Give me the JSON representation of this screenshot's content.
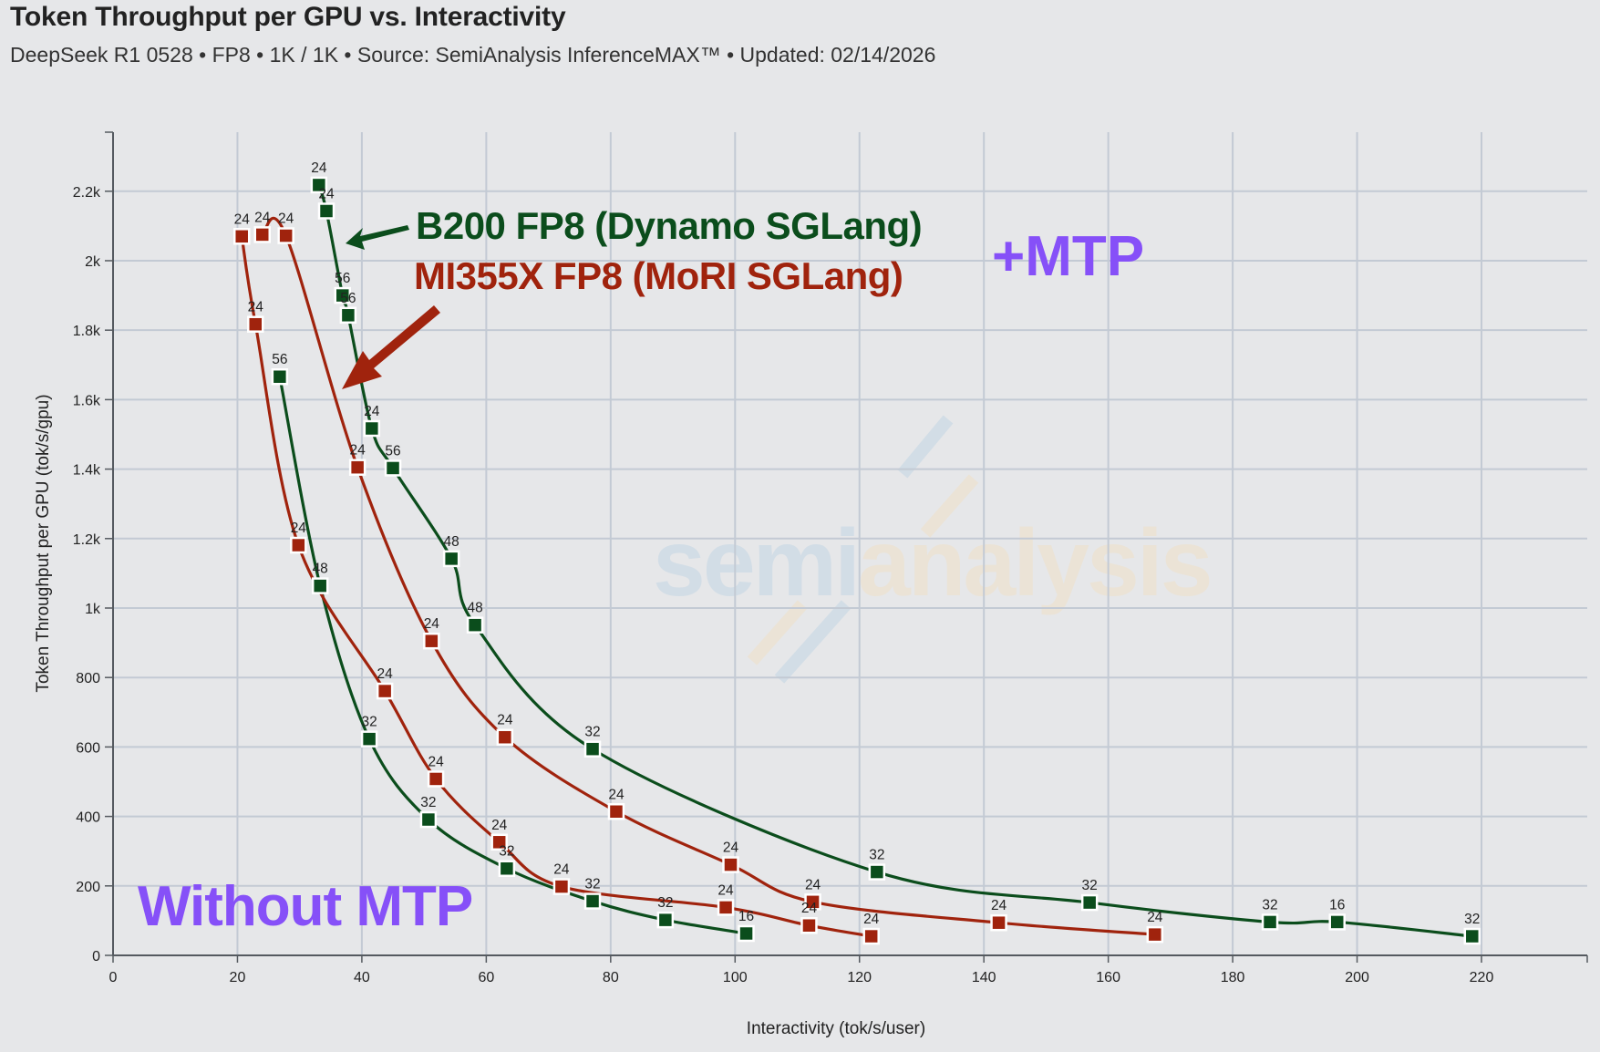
{
  "header": {
    "title": "Token Throughput per GPU vs. Interactivity",
    "subtitle": "DeepSeek R1 0528 • FP8 • 1K / 1K • Source: SemiAnalysis InferenceMAX™ • Updated: 02/14/2026"
  },
  "watermark": {
    "part1": "semi",
    "part2": "analysis",
    "color1": "#d2dde6",
    "color2": "#ebe3d6"
  },
  "chart_data": {
    "type": "line",
    "title": "Token Throughput per GPU vs. Interactivity",
    "xlabel": "Interactivity (tok/s/user)",
    "ylabel": "Token Throughput per GPU (tok/s/gpu)",
    "xlim": [
      0,
      237
    ],
    "ylim": [
      0,
      2370
    ],
    "x_ticks": [
      0,
      20,
      40,
      60,
      80,
      100,
      120,
      140,
      160,
      180,
      200,
      220
    ],
    "x_tick_labels": [
      "0",
      "20",
      "40",
      "60",
      "80",
      "100",
      "120",
      "140",
      "160",
      "180",
      "200",
      "220"
    ],
    "y_ticks": [
      0,
      200,
      400,
      600,
      800,
      1000,
      1200,
      1400,
      1600,
      1800,
      2000,
      2200
    ],
    "y_tick_labels": [
      "0",
      "200",
      "400",
      "600",
      "800",
      "1k",
      "1.2k",
      "1.4k",
      "1.6k",
      "1.8k",
      "2k",
      "2.2k"
    ],
    "grid": true,
    "series": [
      {
        "name": "B200 FP8 (Dynamo SGLang) +MTP",
        "color": "#0b4d1c",
        "x": [
          33.1,
          34.3,
          36.9,
          37.8,
          41.6,
          45.0,
          54.4,
          58.2,
          77.1,
          122.8,
          157.0,
          186.0,
          196.8,
          218.5
        ],
        "y": [
          2218,
          2143,
          1900,
          1843,
          1517,
          1403,
          1142,
          951,
          594,
          240,
          152,
          96,
          96,
          55
        ],
        "labels": [
          "24",
          "24",
          "56",
          "56",
          "24",
          "56",
          "48",
          "48",
          "32",
          "32",
          "32",
          "32",
          "16",
          "32"
        ]
      },
      {
        "name": "B200 FP8 (Dynamo SGLang) without MTP",
        "color": "#0b4d1c",
        "x": [
          26.8,
          33.3,
          41.2,
          50.7,
          63.3,
          77.1,
          88.8,
          101.8
        ],
        "y": [
          1666,
          1064,
          623,
          391,
          250,
          156,
          102,
          63
        ],
        "labels": [
          "56",
          "48",
          "32",
          "32",
          "32",
          "32",
          "32",
          "16"
        ]
      },
      {
        "name": "MI355X FP8 (MoRI SGLang) +MTP",
        "color": "#a0230d",
        "x": [
          24.0,
          27.8,
          39.3,
          51.2,
          63.0,
          80.9,
          99.3,
          112.5,
          142.4,
          167.5
        ],
        "y": [
          2075,
          2072,
          1405,
          905,
          628,
          414,
          261,
          154,
          94,
          60
        ],
        "labels": [
          "24",
          "24",
          "24",
          "24",
          "24",
          "24",
          "24",
          "24",
          "24",
          "24"
        ]
      },
      {
        "name": "MI355X FP8 (MoRI SGLang) without MTP",
        "color": "#a0230d",
        "x": [
          20.7,
          22.9,
          29.8,
          43.7,
          51.9,
          62.1,
          72.1,
          98.5,
          111.9,
          121.9
        ],
        "y": [
          2070,
          1817,
          1181,
          761,
          508,
          326,
          198,
          138,
          86,
          55
        ],
        "labels": [
          "24",
          "24",
          "24",
          "24",
          "24",
          "24",
          "24",
          "24",
          "24",
          "24"
        ]
      }
    ],
    "annotations": {
      "b200": {
        "text": "B200 FP8 (Dynamo SGLang)",
        "color": "#0b4d1c"
      },
      "mi355x": {
        "text": "MI355X FP8 (MoRI SGLang)",
        "color": "#a0230d"
      },
      "mtp": {
        "text": "+MTP",
        "color": "#8650f8"
      },
      "no_mtp": {
        "text": "Without MTP",
        "color": "#8650f8"
      }
    }
  }
}
